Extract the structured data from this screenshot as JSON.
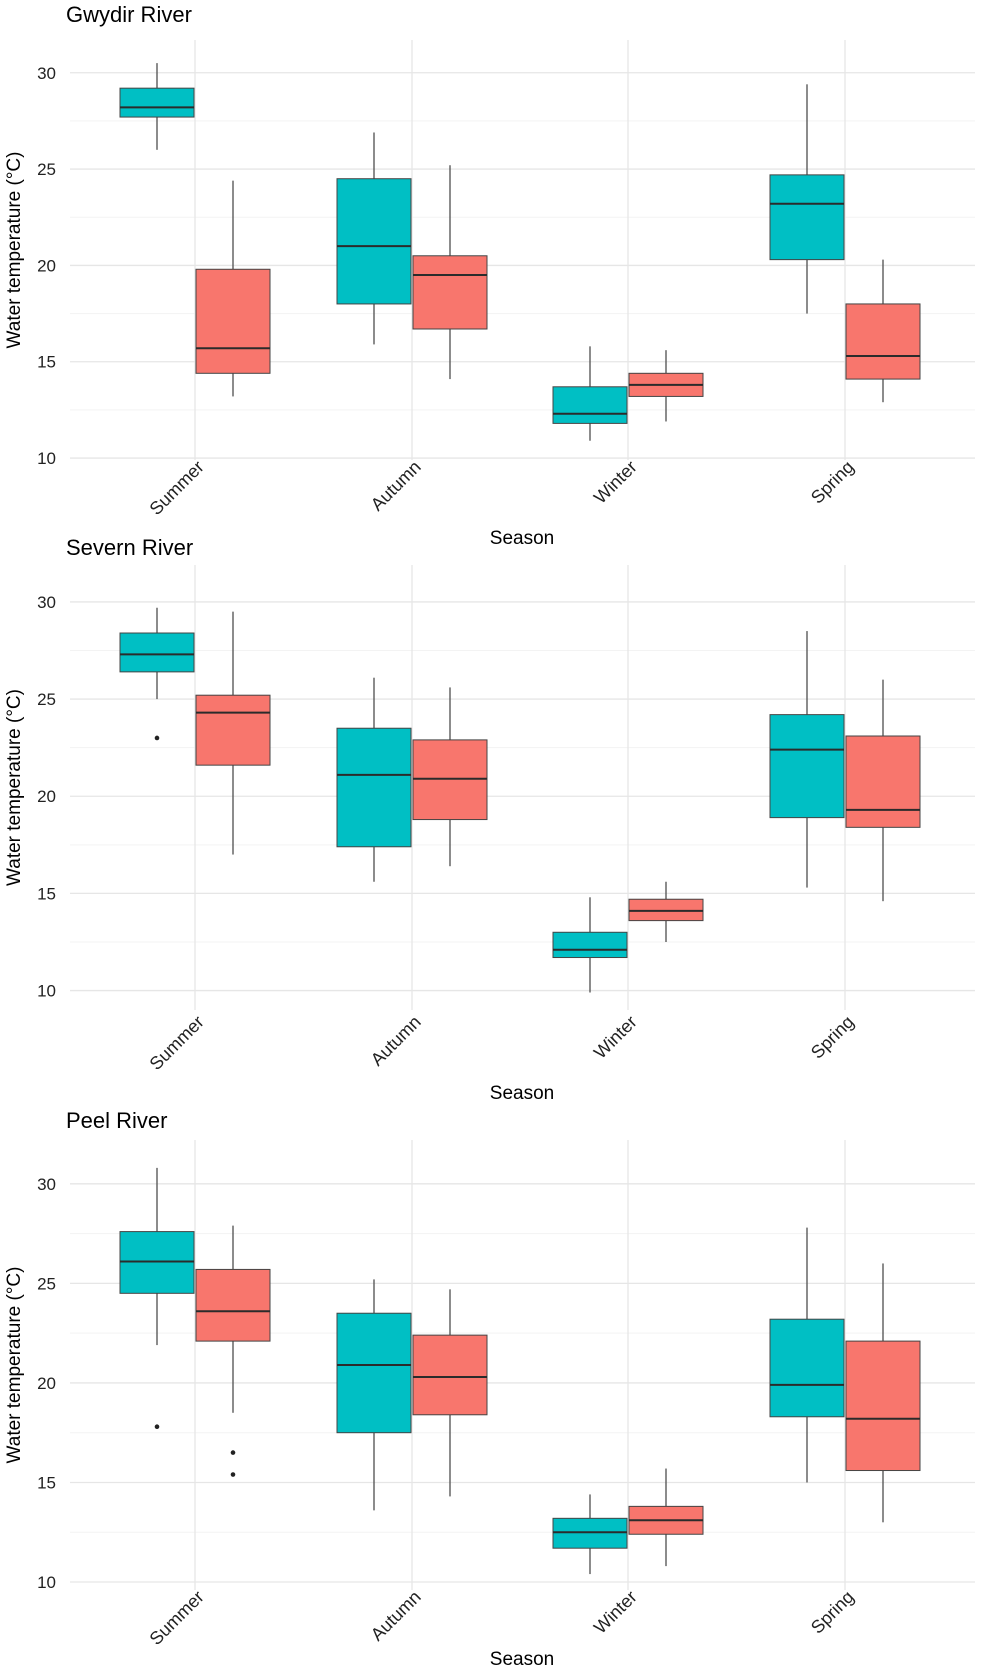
{
  "figure": {
    "colors": {
      "series_a": "#00bfc4",
      "series_b": "#f8766d"
    }
  },
  "chart_data": [
    {
      "type": "boxplot",
      "title": "Gwydir River",
      "xlabel": "Season",
      "ylabel": "Water temperature (°C)",
      "ylim": [
        9.9,
        31.7
      ],
      "yticks": [
        "10",
        "15",
        "20",
        "25",
        "30"
      ],
      "categories": [
        "Summer",
        "Autumn",
        "Winter",
        "Spring"
      ],
      "series": [
        {
          "name": "series_a",
          "color": "#00bfc4",
          "boxes": [
            {
              "min": 26.0,
              "q1": 27.7,
              "median": 28.2,
              "q3": 29.2,
              "max": 30.5,
              "outliers": []
            },
            {
              "min": 15.9,
              "q1": 18.0,
              "median": 21.0,
              "q3": 24.5,
              "max": 26.9,
              "outliers": []
            },
            {
              "min": 10.9,
              "q1": 11.8,
              "median": 12.3,
              "q3": 13.7,
              "max": 15.8,
              "outliers": []
            },
            {
              "min": 17.5,
              "q1": 20.3,
              "median": 23.2,
              "q3": 24.7,
              "max": 29.4,
              "outliers": []
            }
          ]
        },
        {
          "name": "series_b",
          "color": "#f8766d",
          "boxes": [
            {
              "min": 13.2,
              "q1": 14.4,
              "median": 15.7,
              "q3": 19.8,
              "max": 24.4,
              "outliers": []
            },
            {
              "min": 14.1,
              "q1": 16.7,
              "median": 19.5,
              "q3": 20.5,
              "max": 25.2,
              "outliers": []
            },
            {
              "min": 11.9,
              "q1": 13.2,
              "median": 13.8,
              "q3": 14.4,
              "max": 15.6,
              "outliers": []
            },
            {
              "min": 12.9,
              "q1": 14.1,
              "median": 15.3,
              "q3": 18.0,
              "max": 20.3,
              "outliers": []
            }
          ]
        }
      ]
    },
    {
      "type": "boxplot",
      "title": "Severn River",
      "xlabel": "Season",
      "ylabel": "Water temperature (°C)",
      "ylim": [
        9.0,
        31.9
      ],
      "yticks": [
        "10",
        "15",
        "20",
        "25",
        "30"
      ],
      "categories": [
        "Summer",
        "Autumn",
        "Winter",
        "Spring"
      ],
      "series": [
        {
          "name": "series_a",
          "color": "#00bfc4",
          "boxes": [
            {
              "min": 25.0,
              "q1": 26.4,
              "median": 27.3,
              "q3": 28.4,
              "max": 29.7,
              "outliers": [
                23.0
              ]
            },
            {
              "min": 15.6,
              "q1": 17.4,
              "median": 21.1,
              "q3": 23.5,
              "max": 26.1,
              "outliers": []
            },
            {
              "min": 9.9,
              "q1": 11.7,
              "median": 12.1,
              "q3": 13.0,
              "max": 14.8,
              "outliers": []
            },
            {
              "min": 15.3,
              "q1": 18.9,
              "median": 22.4,
              "q3": 24.2,
              "max": 28.5,
              "outliers": []
            }
          ]
        },
        {
          "name": "series_b",
          "color": "#f8766d",
          "boxes": [
            {
              "min": 17.0,
              "q1": 21.6,
              "median": 24.3,
              "q3": 25.2,
              "max": 29.5,
              "outliers": []
            },
            {
              "min": 16.4,
              "q1": 18.8,
              "median": 20.9,
              "q3": 22.9,
              "max": 25.6,
              "outliers": []
            },
            {
              "min": 12.5,
              "q1": 13.6,
              "median": 14.1,
              "q3": 14.7,
              "max": 15.6,
              "outliers": []
            },
            {
              "min": 14.6,
              "q1": 18.4,
              "median": 19.3,
              "q3": 23.1,
              "max": 26.0,
              "outliers": []
            }
          ]
        }
      ]
    },
    {
      "type": "boxplot",
      "title": "Peel River",
      "xlabel": "Season",
      "ylabel": "Water temperature (°C)",
      "ylim": [
        9.6,
        32.2
      ],
      "yticks": [
        "10",
        "15",
        "20",
        "25",
        "30"
      ],
      "categories": [
        "Summer",
        "Autumn",
        "Winter",
        "Spring"
      ],
      "series": [
        {
          "name": "series_a",
          "color": "#00bfc4",
          "boxes": [
            {
              "min": 21.9,
              "q1": 24.5,
              "median": 26.1,
              "q3": 27.6,
              "max": 30.8,
              "outliers": [
                17.8
              ]
            },
            {
              "min": 13.6,
              "q1": 17.5,
              "median": 20.9,
              "q3": 23.5,
              "max": 25.2,
              "outliers": []
            },
            {
              "min": 10.4,
              "q1": 11.7,
              "median": 12.5,
              "q3": 13.2,
              "max": 14.4,
              "outliers": []
            },
            {
              "min": 15.0,
              "q1": 18.3,
              "median": 19.9,
              "q3": 23.2,
              "max": 27.8,
              "outliers": []
            }
          ]
        },
        {
          "name": "series_b",
          "color": "#f8766d",
          "boxes": [
            {
              "min": 18.5,
              "q1": 22.1,
              "median": 23.6,
              "q3": 25.7,
              "max": 27.9,
              "outliers": [
                16.5,
                15.4
              ]
            },
            {
              "min": 14.3,
              "q1": 18.4,
              "median": 20.3,
              "q3": 22.4,
              "max": 24.7,
              "outliers": []
            },
            {
              "min": 10.8,
              "q1": 12.4,
              "median": 13.1,
              "q3": 13.8,
              "max": 15.7,
              "outliers": []
            },
            {
              "min": 13.0,
              "q1": 15.6,
              "median": 18.2,
              "q3": 22.1,
              "max": 26.0,
              "outliers": []
            }
          ]
        }
      ]
    }
  ]
}
